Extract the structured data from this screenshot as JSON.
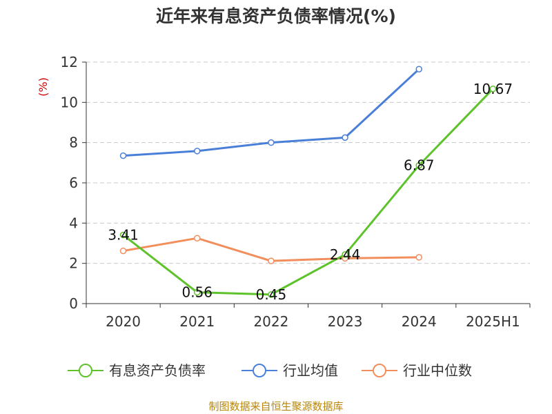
{
  "chart_data": {
    "type": "line",
    "title": "近年来有息资产负债率情况(%)",
    "ylabel": "(%)",
    "categories": [
      "2020",
      "2021",
      "2022",
      "2023",
      "2024",
      "2025H1"
    ],
    "ylim": [
      0,
      12
    ],
    "yticks": [
      "0",
      "2",
      "4",
      "6",
      "8",
      "10",
      "12"
    ],
    "grid": true,
    "legend_position": "bottom",
    "series": [
      {
        "name": "有息资产负债率",
        "color": "#5ec22a",
        "values": [
          3.41,
          0.56,
          0.45,
          2.44,
          6.87,
          10.67
        ],
        "labels": [
          "3.41",
          "0.56",
          "0.45",
          "2.44",
          "6.87",
          "10.67"
        ]
      },
      {
        "name": "行业均值",
        "color": "#4a7fd8",
        "values": [
          7.35,
          7.58,
          8.0,
          8.25,
          11.65,
          null
        ]
      },
      {
        "name": "行业中位数",
        "color": "#f28e5c",
        "values": [
          2.62,
          3.25,
          2.12,
          2.25,
          2.3,
          null
        ]
      }
    ]
  },
  "source": "制图数据来自恒生聚源数据库"
}
